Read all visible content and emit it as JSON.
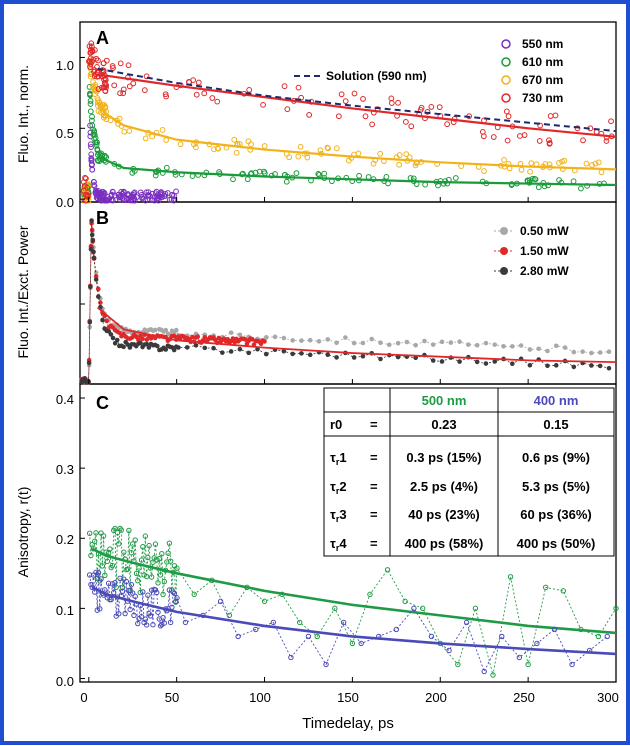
{
  "colors": {
    "frame": "#1f4fd0",
    "c550": "#7a2fc0",
    "c610": "#1a9a3a",
    "c670": "#f2b21a",
    "c730": "#e0282a",
    "solution": "#1c2a6e",
    "p050": "#a8a8a8",
    "p150": "#e0282a",
    "p280": "#3a3a3a",
    "green": "#1f9a45",
    "blue": "#4a4ab8"
  },
  "chart_data": [
    {
      "panel": "A",
      "type": "scatter",
      "ylabel": "Fluo. Int., norm.",
      "xlim": [
        -5,
        300
      ],
      "ylim": [
        -0.02,
        1.25
      ],
      "yticks": [
        "0.0",
        "0.5",
        "1.0"
      ],
      "series": [
        {
          "name": "550 nm",
          "color_key": "c550",
          "amp": 0.95,
          "tau": 1.2,
          "floor": 0.02
        },
        {
          "name": "610 nm",
          "color_key": "c610",
          "amp": 0.85,
          "tau": 2.5,
          "floor": 0.2
        },
        {
          "name": "670 nm",
          "color_key": "c670",
          "amp": 1.0,
          "tau": 3,
          "floor": 0.6
        },
        {
          "name": "730 nm",
          "color_key": "c730",
          "amp": 1.05,
          "tau": 4,
          "floor": 0.9
        }
      ],
      "fits": [
        {
          "series": "610 nm",
          "x": [
            5,
            20,
            50,
            100,
            150,
            200,
            250,
            300
          ],
          "y": [
            0.3,
            0.22,
            0.19,
            0.16,
            0.14,
            0.12,
            0.11,
            0.1
          ]
        },
        {
          "series": "670 nm",
          "x": [
            5,
            10,
            20,
            50,
            100,
            150,
            200,
            250,
            300
          ],
          "y": [
            0.68,
            0.6,
            0.52,
            0.42,
            0.35,
            0.3,
            0.26,
            0.23,
            0.21
          ]
        },
        {
          "series": "730 nm",
          "x": [
            5,
            50,
            100,
            150,
            200,
            250,
            300
          ],
          "y": [
            0.88,
            0.8,
            0.72,
            0.64,
            0.57,
            0.5,
            0.44
          ]
        }
      ],
      "solution": {
        "label": "Solution (590 nm)",
        "x": [
          5,
          50,
          100,
          150,
          200,
          250,
          300
        ],
        "y": [
          0.92,
          0.82,
          0.73,
          0.66,
          0.6,
          0.54,
          0.48
        ]
      },
      "legend": "top-right"
    },
    {
      "panel": "B",
      "type": "scatter",
      "ylabel": "Fluo. Int./Exct. Power",
      "xlim": [
        -5,
        300
      ],
      "ylim": [
        0,
        1
      ],
      "series": [
        {
          "name": "0.50 mW",
          "color_key": "p050",
          "floor": 0.3
        },
        {
          "name": "1.50 mW",
          "color_key": "p150",
          "floor": 0.27
        },
        {
          "name": "2.80 mW",
          "color_key": "p280",
          "floor": 0.22
        }
      ],
      "fit": {
        "x": [
          5,
          20,
          50,
          100,
          150,
          200,
          250,
          300
        ],
        "y": [
          0.42,
          0.3,
          0.24,
          0.2,
          0.17,
          0.15,
          0.13,
          0.12
        ]
      },
      "legend": "top-right"
    },
    {
      "panel": "C",
      "type": "scatter",
      "xlabel": "Timedelay, ps",
      "ylabel": "Anisotropy, r(t)",
      "xlim": [
        -5,
        300
      ],
      "ylim": [
        -0.005,
        0.42
      ],
      "yticks": [
        "0.0",
        "0.1",
        "0.2",
        "0.3",
        "0.4"
      ],
      "xticks": [
        "0",
        "50",
        "100",
        "150",
        "200",
        "250",
        "300"
      ],
      "series": [
        {
          "name": "500 nm",
          "color_key": "green",
          "fit": {
            "x": [
              2,
              10,
              25,
              50,
              100,
              150,
              200,
              250,
              300
            ],
            "y": [
              0.185,
              0.175,
              0.165,
              0.15,
              0.125,
              0.105,
              0.09,
              0.075,
              0.065
            ]
          },
          "scatter_x": [
            60,
            70,
            80,
            90,
            100,
            110,
            120,
            130,
            140,
            150,
            160,
            170,
            180,
            190,
            200,
            210,
            220,
            230,
            240,
            250,
            260,
            270,
            280,
            290,
            300
          ],
          "scatter_y": [
            0.12,
            0.14,
            0.09,
            0.13,
            0.11,
            0.12,
            0.08,
            0.06,
            0.1,
            0.05,
            0.12,
            0.155,
            0.11,
            0.1,
            0.05,
            0.02,
            0.1,
            0.005,
            0.145,
            0.02,
            0.13,
            0.125,
            0.07,
            0.06,
            0.1
          ]
        },
        {
          "name": "400 nm",
          "color_key": "blue",
          "fit": {
            "x": [
              2,
              10,
              25,
              50,
              100,
              150,
              200,
              250,
              300
            ],
            "y": [
              0.13,
              0.12,
              0.11,
              0.095,
              0.075,
              0.06,
              0.05,
              0.042,
              0.035
            ]
          },
          "scatter_x": [
            55,
            65,
            75,
            85,
            95,
            105,
            115,
            125,
            135,
            145,
            155,
            165,
            175,
            185,
            195,
            205,
            215,
            225,
            235,
            245,
            255,
            265,
            275,
            285,
            295
          ],
          "scatter_y": [
            0.08,
            0.09,
            0.11,
            0.06,
            0.07,
            0.08,
            0.03,
            0.06,
            0.02,
            0.08,
            0.05,
            0.06,
            0.07,
            0.1,
            0.06,
            0.04,
            0.08,
            0.01,
            0.06,
            0.03,
            0.05,
            0.07,
            0.02,
            0.04,
            0.06
          ]
        }
      ],
      "table": {
        "col_headers": [
          "500 nm",
          "400 nm"
        ],
        "rows": [
          {
            "label": "r0",
            "sym": "",
            "sub": "",
            "eq": "=",
            "v1": "0.23",
            "v2": "0.15"
          },
          {
            "label": "",
            "sym": "τ",
            "sub": "r",
            "num": "1",
            "eq": "=",
            "v1": "0.3 ps (15%)",
            "v2": "0.6 ps (9%)"
          },
          {
            "label": "",
            "sym": "τ",
            "sub": "r",
            "num": "2",
            "eq": "=",
            "v1": "2.5 ps (4%)",
            "v2": "5.3 ps (5%)"
          },
          {
            "label": "",
            "sym": "τ",
            "sub": "r",
            "num": "3",
            "eq": "=",
            "v1": "40 ps (23%)",
            "v2": "60 ps (36%)"
          },
          {
            "label": "",
            "sym": "τ",
            "sub": "r",
            "num": "4",
            "eq": "=",
            "v1": "400 ps (58%)",
            "v2": "400 ps (50%)"
          }
        ]
      }
    }
  ]
}
